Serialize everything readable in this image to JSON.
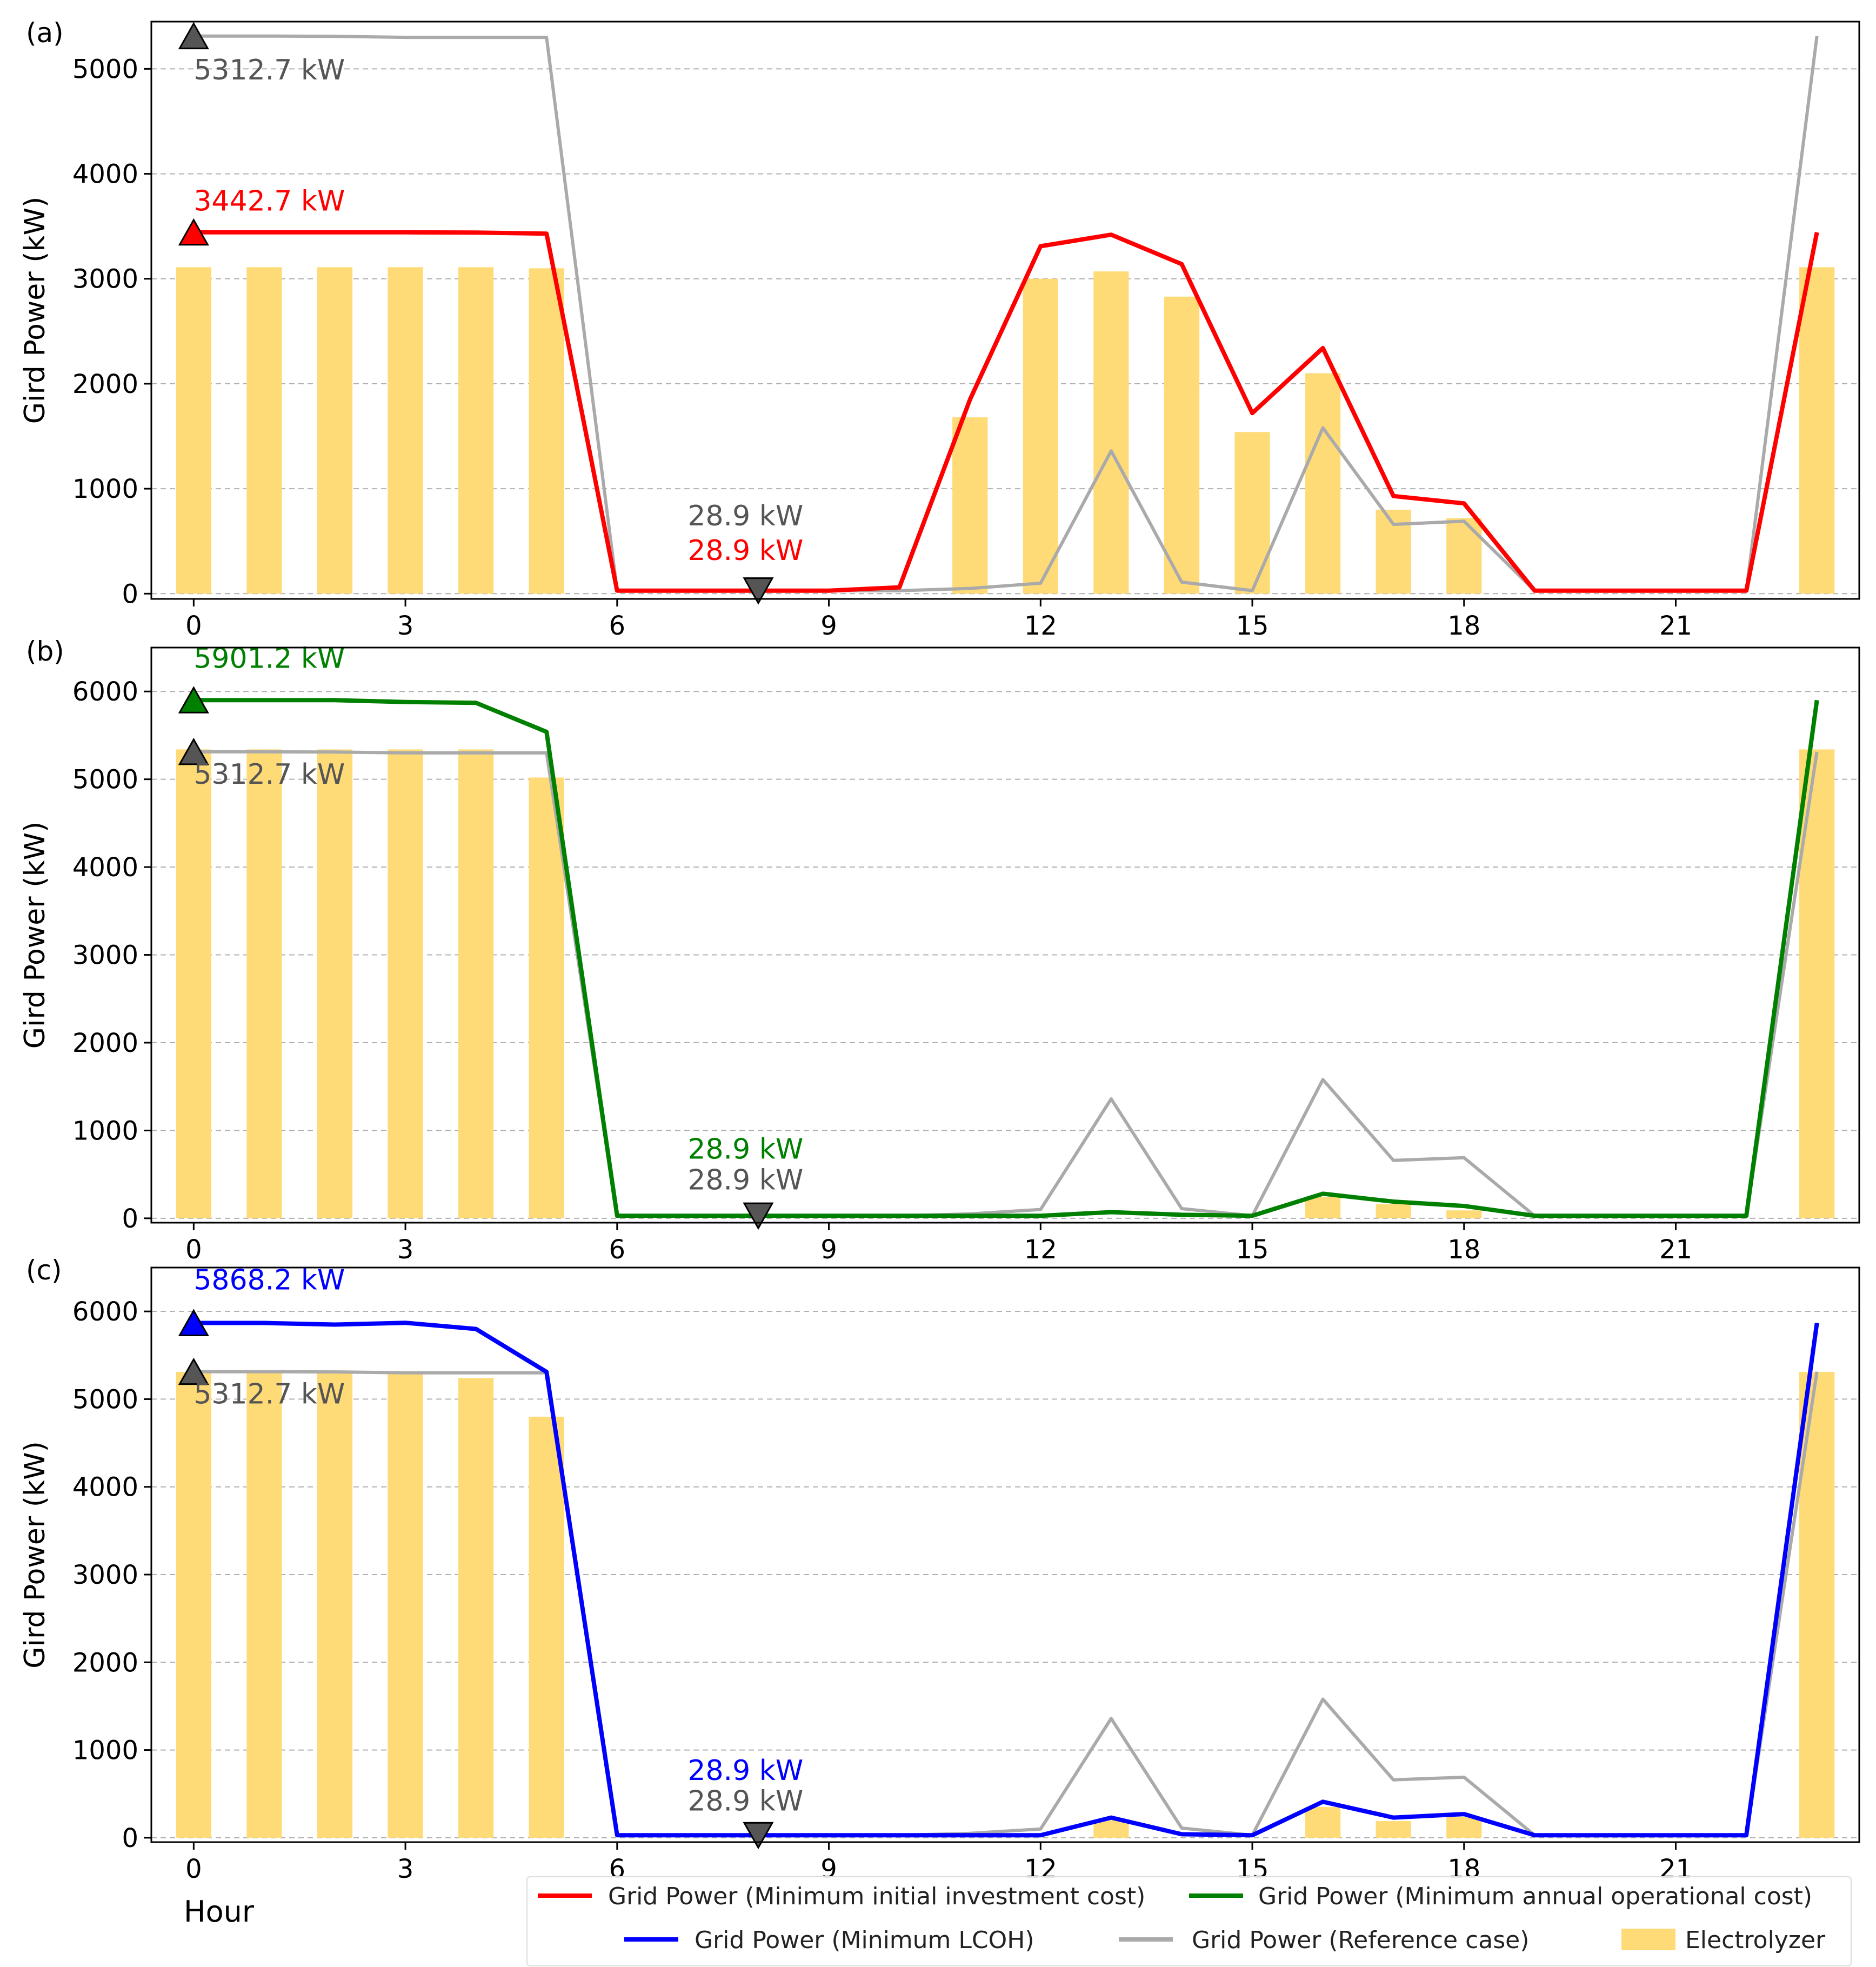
{
  "x_axis_label": "Hour",
  "chart_data": [
    {
      "panel_label": "(a)",
      "type": "bar+line",
      "ylabel": "Gird Power (kW)",
      "xlim": [
        -0.6,
        23.6
      ],
      "ylim": [
        -50,
        5450
      ],
      "xticks": [
        0,
        3,
        6,
        9,
        12,
        15,
        18,
        21
      ],
      "yticks": [
        0,
        1000,
        2000,
        3000,
        4000,
        5000
      ],
      "grid": "horizontal dashed",
      "x": [
        0,
        1,
        2,
        3,
        4,
        5,
        6,
        7,
        8,
        9,
        10,
        11,
        12,
        13,
        14,
        15,
        16,
        17,
        18,
        19,
        20,
        21,
        22,
        23
      ],
      "bars": {
        "name": "Electrolyzer",
        "color": "#ffdb78",
        "values": [
          3110,
          3110,
          3110,
          3110,
          3110,
          3100,
          0,
          0,
          0,
          0,
          0,
          1680,
          3000,
          3070,
          2830,
          1540,
          2100,
          800,
          720,
          0,
          0,
          0,
          0,
          3110
        ]
      },
      "series": [
        {
          "name": "Grid Power (Reference case)",
          "color": "#aaaaaa",
          "values": [
            5312.7,
            5312.7,
            5310,
            5300,
            5300,
            5300,
            28.9,
            28.9,
            28.9,
            28.9,
            28.9,
            50,
            100,
            1360,
            110,
            28.9,
            1580,
            660,
            690,
            28.9,
            28.9,
            28.9,
            28.9,
            5312.7
          ]
        },
        {
          "name": "Grid Power (Minimum initial investment cost)",
          "color": "#ff0000",
          "values": [
            3442.7,
            3442.7,
            3442.7,
            3442.7,
            3440,
            3430,
            28.9,
            28.9,
            28.9,
            28.9,
            60,
            1850,
            3310,
            3420,
            3140,
            1720,
            2340,
            930,
            860,
            28.9,
            28.9,
            28.9,
            28.9,
            3442.7
          ]
        }
      ],
      "markers": [
        {
          "x": 0,
          "y": 5312.7,
          "shape": "triangle-up",
          "color": "#555555"
        },
        {
          "x": 0,
          "y": 3442.7,
          "shape": "triangle-up",
          "color": "#ff0000"
        },
        {
          "x": 8,
          "y": 28.9,
          "shape": "triangle-down",
          "color": "#555555"
        }
      ],
      "annotations": [
        {
          "text": "5312.7  kW",
          "x": 0,
          "y": 4900,
          "color": "#555555"
        },
        {
          "text": "3442.7  kW",
          "x": 0,
          "y": 3650,
          "color": "#ff0000"
        },
        {
          "text": "28.9  kW",
          "x": 7.0,
          "y": 650,
          "color": "#555555"
        },
        {
          "text": "28.9  kW",
          "x": 7.0,
          "y": 320,
          "color": "#ff0000"
        }
      ]
    },
    {
      "panel_label": "(b)",
      "type": "bar+line",
      "ylabel": "Gird Power (kW)",
      "xlim": [
        -0.6,
        23.6
      ],
      "ylim": [
        -50,
        6500
      ],
      "xticks": [
        0,
        3,
        6,
        9,
        12,
        15,
        18,
        21
      ],
      "yticks": [
        0,
        1000,
        2000,
        3000,
        4000,
        5000,
        6000
      ],
      "grid": "horizontal dashed",
      "x": [
        0,
        1,
        2,
        3,
        4,
        5,
        6,
        7,
        8,
        9,
        10,
        11,
        12,
        13,
        14,
        15,
        16,
        17,
        18,
        19,
        20,
        21,
        22,
        23
      ],
      "bars": {
        "name": "Electrolyzer",
        "color": "#ffdb78",
        "values": [
          5340,
          5340,
          5340,
          5340,
          5340,
          5020,
          0,
          0,
          0,
          0,
          0,
          0,
          0,
          0,
          0,
          0,
          240,
          160,
          90,
          0,
          0,
          0,
          0,
          5340
        ]
      },
      "series": [
        {
          "name": "Grid Power (Reference case)",
          "color": "#aaaaaa",
          "values": [
            5312.7,
            5312.7,
            5310,
            5300,
            5300,
            5300,
            28.9,
            28.9,
            28.9,
            28.9,
            28.9,
            50,
            100,
            1360,
            110,
            28.9,
            1580,
            660,
            690,
            28.9,
            28.9,
            28.9,
            28.9,
            5312.7
          ]
        },
        {
          "name": "Grid Power (Minimum annual operational cost)",
          "color": "#008000",
          "values": [
            5901.2,
            5901.2,
            5901.2,
            5880,
            5870,
            5540,
            28.9,
            28.9,
            28.9,
            28.9,
            28.9,
            28.9,
            28.9,
            70,
            40,
            28.9,
            280,
            190,
            140,
            28.9,
            28.9,
            28.9,
            28.9,
            5901.2
          ]
        }
      ],
      "markers": [
        {
          "x": 0,
          "y": 5901.2,
          "shape": "triangle-up",
          "color": "#008000"
        },
        {
          "x": 0,
          "y": 5312.7,
          "shape": "triangle-up",
          "color": "#555555"
        },
        {
          "x": 8,
          "y": 28.9,
          "shape": "triangle-down",
          "color": "#555555"
        }
      ],
      "annotations": [
        {
          "text": "5901.2  kW",
          "x": 0,
          "y": 6270,
          "color": "#008000"
        },
        {
          "text": "5312.7  kW",
          "x": 0,
          "y": 4950,
          "color": "#555555"
        },
        {
          "text": "28.9  kW",
          "x": 7.0,
          "y": 680,
          "color": "#008000"
        },
        {
          "text": "28.9  kW",
          "x": 7.0,
          "y": 330,
          "color": "#555555"
        }
      ]
    },
    {
      "panel_label": "(c)",
      "type": "bar+line",
      "ylabel": "Gird Power (kW)",
      "xlim": [
        -0.6,
        23.6
      ],
      "ylim": [
        -50,
        6500
      ],
      "xticks": [
        0,
        3,
        6,
        9,
        12,
        15,
        18,
        21
      ],
      "yticks": [
        0,
        1000,
        2000,
        3000,
        4000,
        5000,
        6000
      ],
      "grid": "horizontal dashed",
      "x": [
        0,
        1,
        2,
        3,
        4,
        5,
        6,
        7,
        8,
        9,
        10,
        11,
        12,
        13,
        14,
        15,
        16,
        17,
        18,
        19,
        20,
        21,
        22,
        23
      ],
      "bars": {
        "name": "Electrolyzer",
        "color": "#ffdb78",
        "values": [
          5310,
          5310,
          5310,
          5300,
          5240,
          4800,
          0,
          0,
          0,
          0,
          0,
          0,
          0,
          200,
          0,
          0,
          350,
          190,
          240,
          0,
          0,
          0,
          0,
          5310
        ]
      },
      "series": [
        {
          "name": "Grid Power (Reference case)",
          "color": "#aaaaaa",
          "values": [
            5312.7,
            5312.7,
            5310,
            5300,
            5300,
            5300,
            28.9,
            28.9,
            28.9,
            28.9,
            28.9,
            50,
            100,
            1360,
            110,
            28.9,
            1580,
            660,
            690,
            28.9,
            28.9,
            28.9,
            28.9,
            5312.7
          ]
        },
        {
          "name": "Grid Power (Minimum LCOH)",
          "color": "#0000ff",
          "values": [
            5868.2,
            5868.2,
            5850,
            5870,
            5800,
            5310,
            28.9,
            28.9,
            28.9,
            28.9,
            28.9,
            28.9,
            28.9,
            230,
            40,
            28.9,
            410,
            230,
            270,
            28.9,
            28.9,
            28.9,
            28.9,
            5868.2
          ]
        }
      ],
      "markers": [
        {
          "x": 0,
          "y": 5868.2,
          "shape": "triangle-up",
          "color": "#0000ff"
        },
        {
          "x": 0,
          "y": 5312.7,
          "shape": "triangle-up",
          "color": "#555555"
        },
        {
          "x": 8,
          "y": 28.9,
          "shape": "triangle-down",
          "color": "#555555"
        }
      ],
      "annotations": [
        {
          "text": "5868.2  kW",
          "x": 0,
          "y": 6250,
          "color": "#0000ff"
        },
        {
          "text": "5312.7  kW",
          "x": 0,
          "y": 4950,
          "color": "#555555"
        },
        {
          "text": "28.9  kW",
          "x": 7.0,
          "y": 660,
          "color": "#0000ff"
        },
        {
          "text": "28.9  kW",
          "x": 7.0,
          "y": 310,
          "color": "#555555"
        }
      ]
    }
  ],
  "legend": {
    "placement": "bottom",
    "entries": [
      {
        "label": "Grid Power (Minimum initial investment cost)",
        "kind": "line",
        "color": "#ff0000"
      },
      {
        "label": "Grid Power (Minimum annual operational cost)",
        "kind": "line",
        "color": "#008000"
      },
      {
        "label": "Grid Power (Minimum LCOH)",
        "kind": "line",
        "color": "#0000ff"
      },
      {
        "label": "Grid Power (Reference case)",
        "kind": "line",
        "color": "#aaaaaa"
      },
      {
        "label": "Electrolyzer",
        "kind": "patch",
        "color": "#ffdb78"
      }
    ]
  }
}
